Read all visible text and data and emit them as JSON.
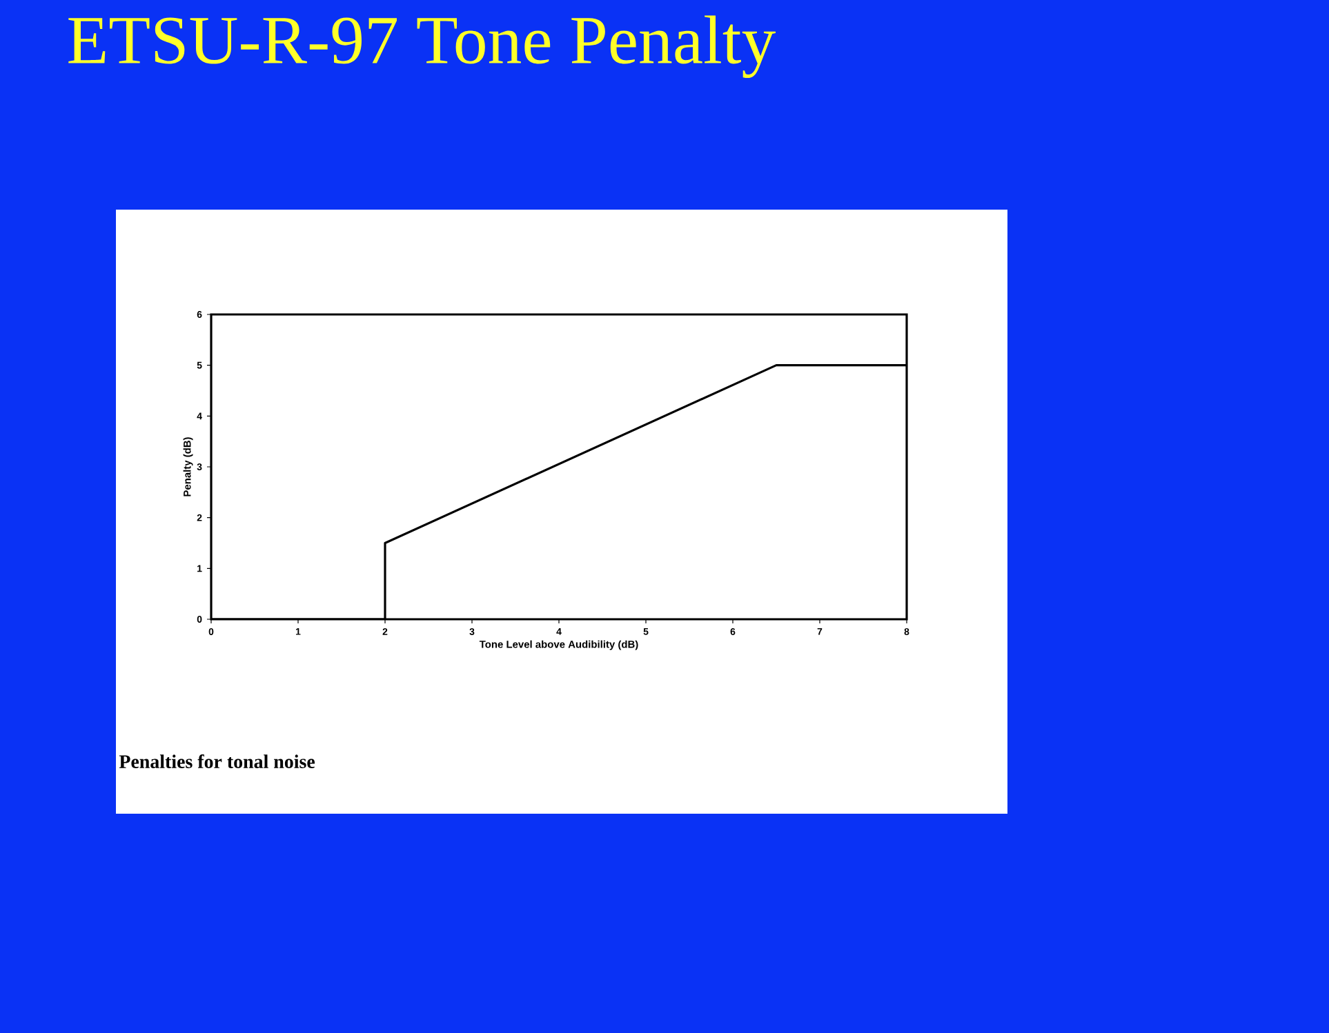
{
  "chart_data": {
    "type": "line",
    "title": "ETSU-R-97 Tone Penalty",
    "xlabel": "Tone Level above Audibility (dB)",
    "ylabel": "Penalty (dB)",
    "annotations": [
      "Penalties for tonal noise"
    ],
    "series": [
      {
        "color": "#000000",
        "x": [
          0,
          2,
          2,
          6.5,
          8
        ],
        "values": [
          0,
          0,
          1.5,
          5,
          5
        ]
      }
    ],
    "xlim": [
      0,
      8
    ],
    "ylim": [
      0,
      6
    ],
    "xticks": [
      0,
      1,
      2,
      3,
      4,
      5,
      6,
      7,
      8
    ],
    "yticks": [
      0,
      1,
      2,
      3,
      4,
      5,
      6
    ],
    "grid": false,
    "marker": "none",
    "line_style": "solid"
  }
}
